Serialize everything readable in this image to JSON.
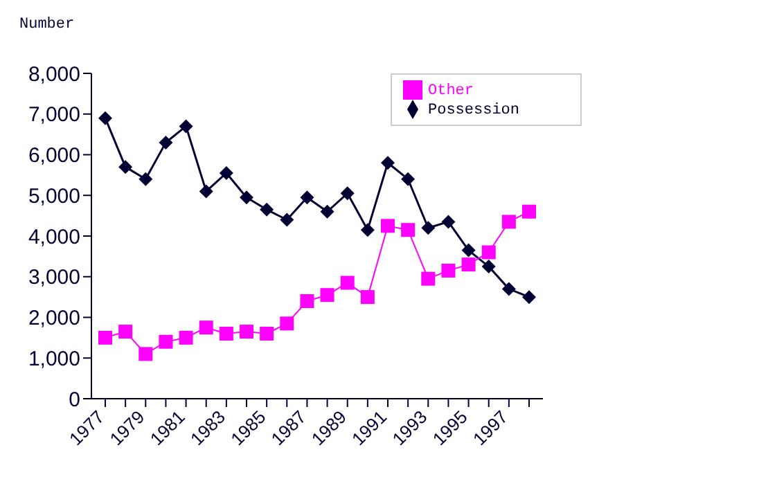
{
  "chart_data": {
    "type": "line",
    "ylabel": "Number",
    "categories": [
      "1977",
      null,
      "1979",
      null,
      "1981",
      null,
      "1983",
      null,
      "1985",
      null,
      "1987",
      null,
      "1989",
      null,
      "1991",
      null,
      "1993",
      null,
      "1995",
      null,
      "1997",
      null
    ],
    "series": [
      {
        "name": "Possession",
        "color": "#000033",
        "marker": "diamond",
        "values": [
          6900,
          5700,
          5400,
          6300,
          6700,
          5100,
          5550,
          4950,
          4650,
          4400,
          4950,
          4600,
          5050,
          4150,
          5800,
          5400,
          4200,
          4350,
          3650,
          3250,
          2700,
          2500
        ]
      },
      {
        "name": "Other",
        "color": "#ff00ff",
        "marker": "square",
        "values": [
          1500,
          1650,
          1100,
          1400,
          1500,
          1750,
          1600,
          1650,
          1600,
          1850,
          2400,
          2550,
          2850,
          2500,
          4250,
          4150,
          2950,
          3150,
          3300,
          3600,
          4350,
          4600
        ]
      }
    ],
    "ylim": [
      0,
      8000
    ],
    "yticks": [
      {
        "value": 0,
        "label": "0"
      },
      {
        "value": 1000,
        "label": "1,000"
      },
      {
        "value": 2000,
        "label": "2,000"
      },
      {
        "value": 3000,
        "label": "3,000"
      },
      {
        "value": 4000,
        "label": "4,000"
      },
      {
        "value": 5000,
        "label": "5,000"
      },
      {
        "value": 6000,
        "label": "6,000"
      },
      {
        "value": 7000,
        "label": "7,000"
      },
      {
        "value": 8000,
        "label": "8,000"
      }
    ],
    "grid": false,
    "legend": "top right"
  }
}
